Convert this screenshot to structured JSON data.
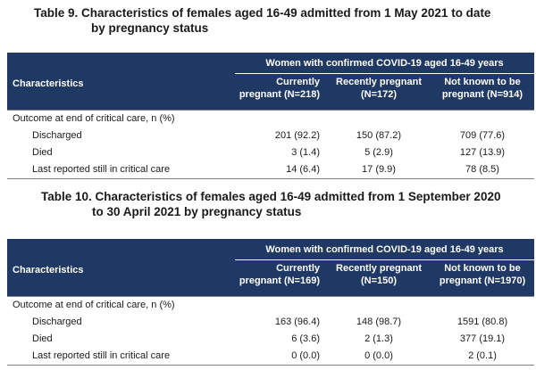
{
  "tables": [
    {
      "title_line1": "Table 9. Characteristics of females aged 16-49 admitted from 1 May 2021 to date",
      "title_line2": "by pregnancy status",
      "header": {
        "characteristics": "Characteristics",
        "span_label": "Women with confirmed COVID-19 aged 16-49 years",
        "columns": [
          {
            "line1": "Currently",
            "line2": "pregnant (N=218)"
          },
          {
            "line1": "Recently pregnant",
            "line2": "(N=172)"
          },
          {
            "line1": "Not known to be",
            "line2": "pregnant (N=914)"
          }
        ]
      },
      "section_label": "Outcome at end of critical care, n (%)",
      "rows": [
        {
          "label": "Discharged",
          "values": [
            "201 (92.2)",
            "150 (87.2)",
            "709 (77.6)"
          ]
        },
        {
          "label": "Died",
          "values": [
            "3 (1.4)",
            "5 (2.9)",
            "127 (13.9)"
          ]
        },
        {
          "label": "Last reported still in critical care",
          "values": [
            "14 (6.4)",
            "17 (9.9)",
            "78 (8.5)"
          ]
        }
      ]
    },
    {
      "title_line1": "Table 10. Characteristics of females aged 16-49 admitted from 1 September 2020",
      "title_line2": "to 30 April 2021 by pregnancy status",
      "header": {
        "characteristics": "Characteristics",
        "span_label": "Women with confirmed COVID-19 aged 16-49 years",
        "columns": [
          {
            "line1": "Currently",
            "line2": "pregnant (N=169)"
          },
          {
            "line1": "Recently pregnant",
            "line2": "(N=150)"
          },
          {
            "line1": "Not known to be",
            "line2": "pregnant (N=1970)"
          }
        ]
      },
      "section_label": "Outcome at end of critical care, n (%)",
      "rows": [
        {
          "label": "Discharged",
          "values": [
            "163 (96.4)",
            "148 (98.7)",
            "1591 (80.8)"
          ]
        },
        {
          "label": "Died",
          "values": [
            "6 (3.6)",
            "2 (1.3)",
            "377 (19.1)"
          ]
        },
        {
          "label": "Last reported still in critical care",
          "values": [
            "0 (0.0)",
            "0 (0.0)",
            "2 (0.1)"
          ]
        }
      ]
    }
  ]
}
